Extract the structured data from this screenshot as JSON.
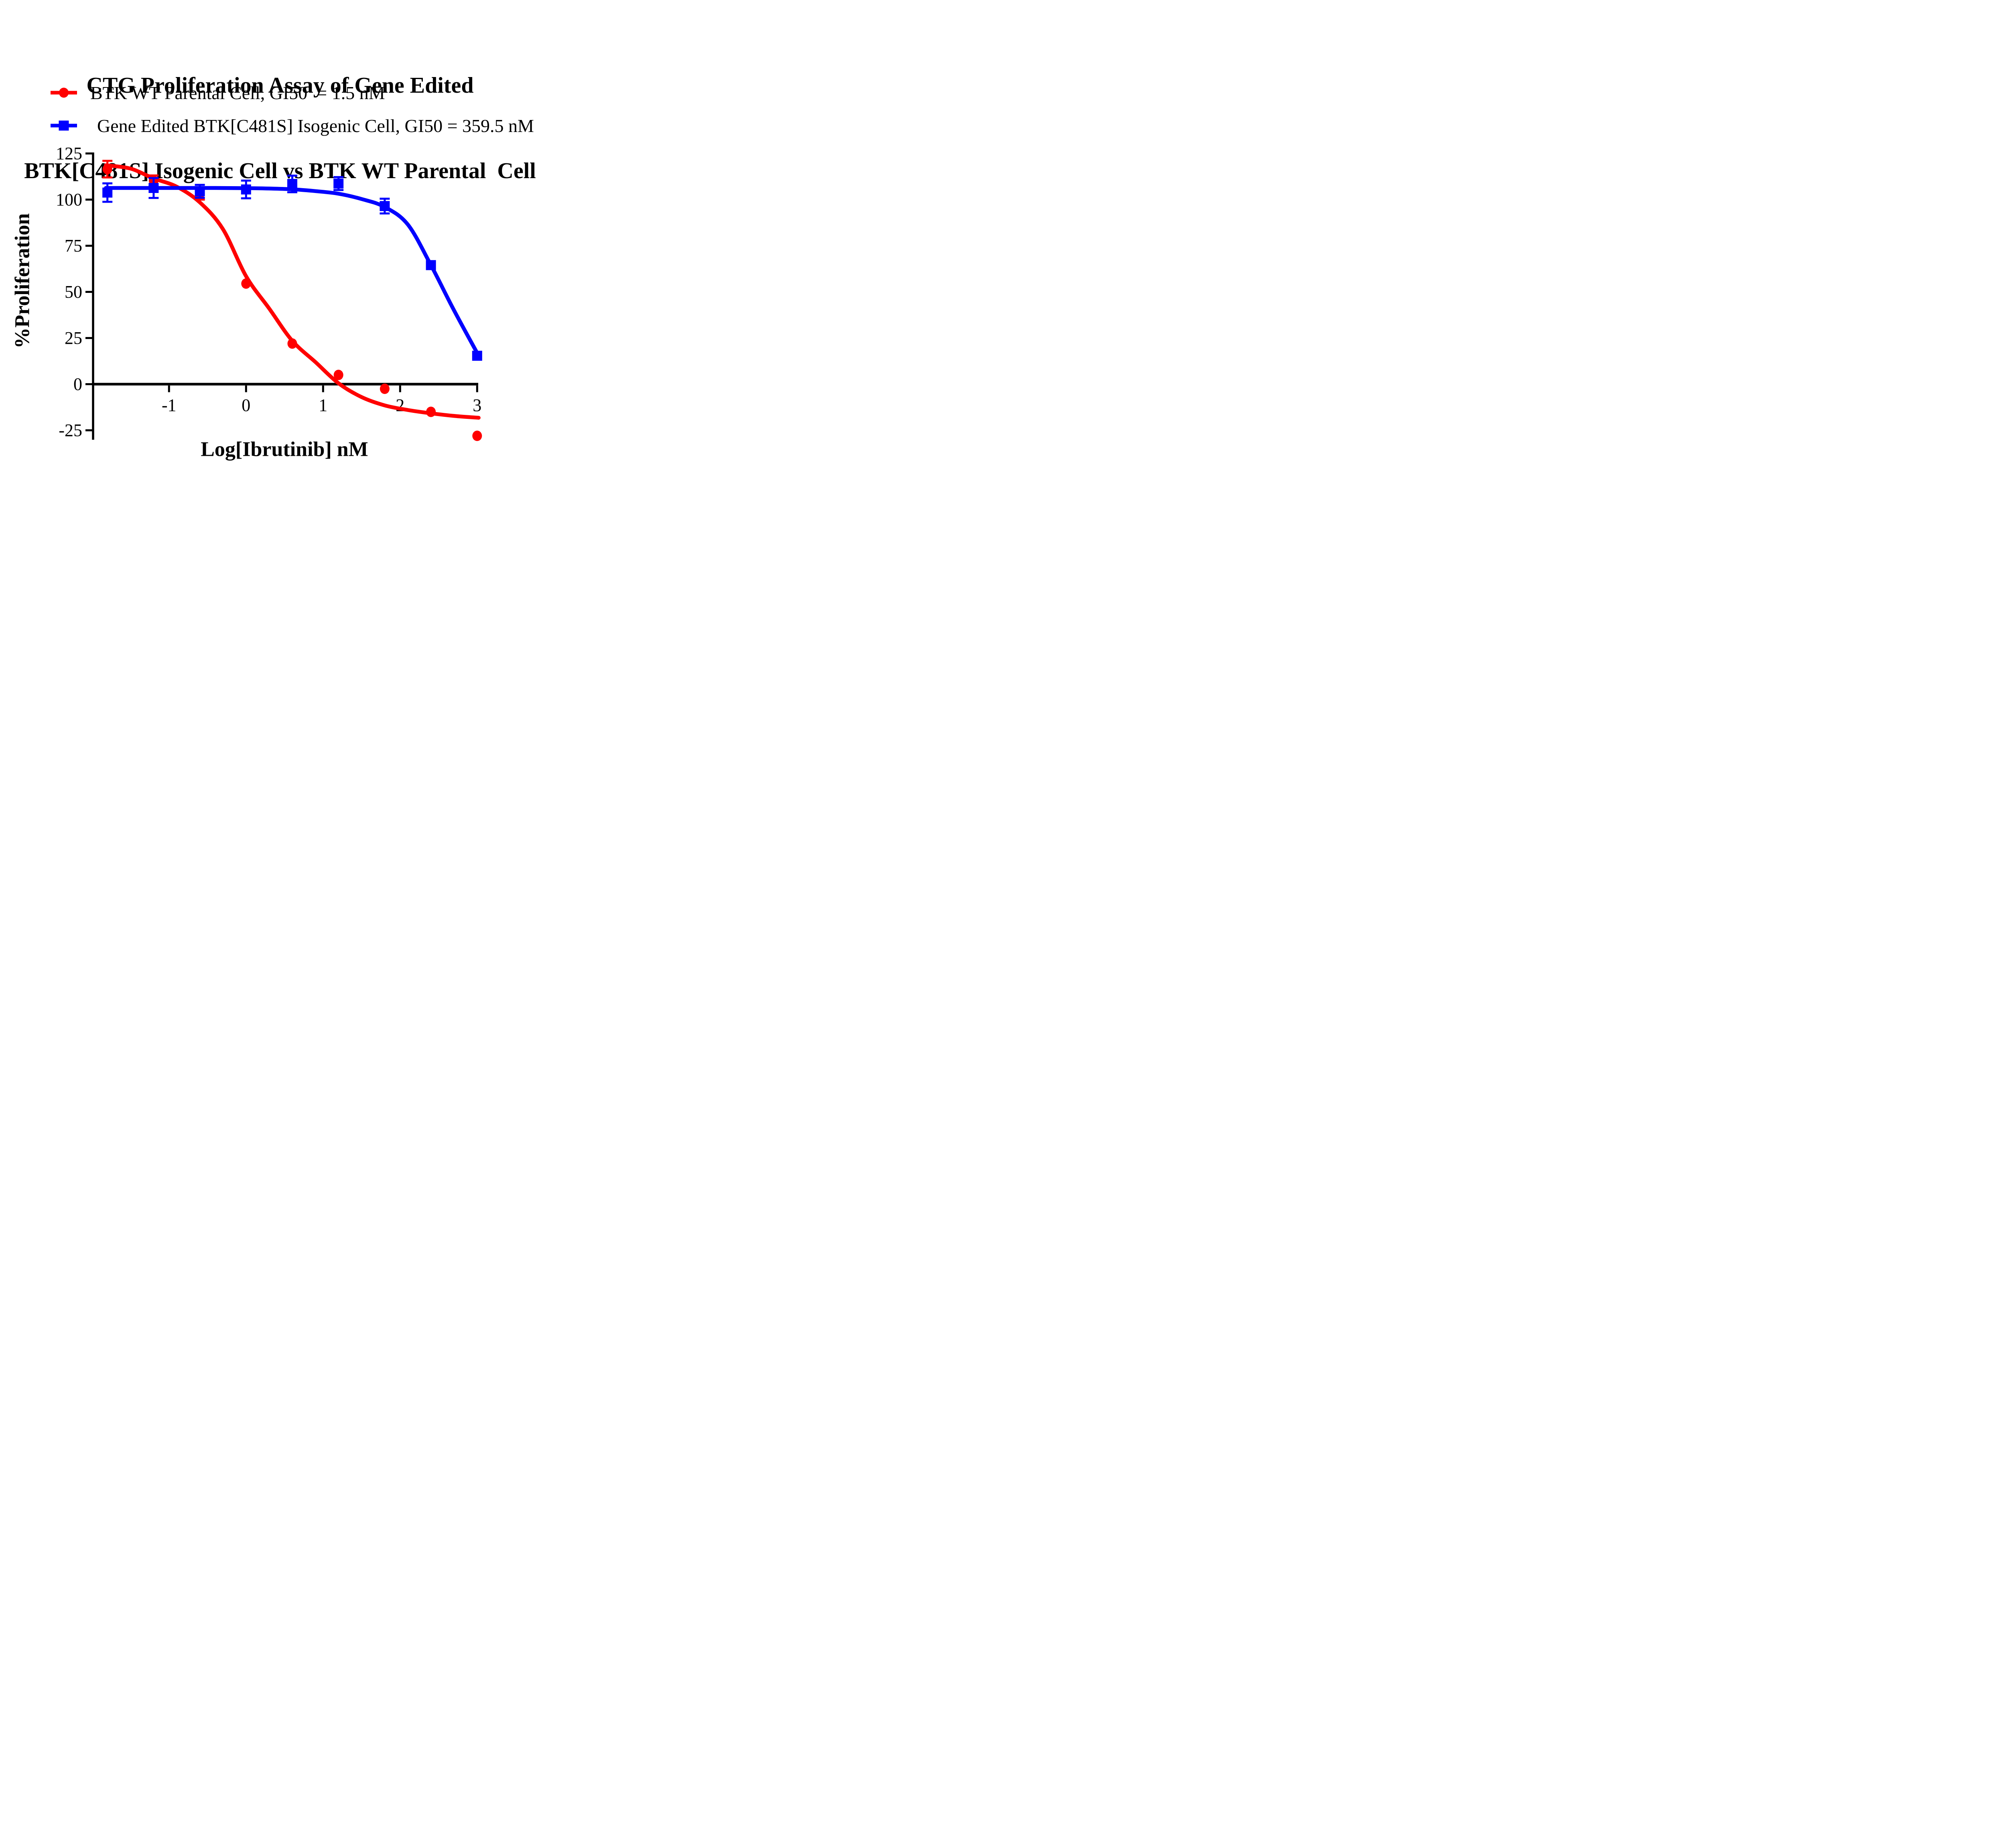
{
  "title": {
    "line1": "CTG Proliferation Assay of Gene Edited",
    "line2": "BTK[C481S] Isogenic Cell vs BTK WT Parental  Cell"
  },
  "legend": {
    "items": [
      {
        "label": "BTK WT Parental Cell, GI50  = 1.5 nM",
        "color": "#FF0000",
        "marker": "circle"
      },
      {
        "label": "Gene Edited BTK[C481S] Isogenic Cell, GI50 = 359.5 nM",
        "color": "#0000FF",
        "marker": "square"
      }
    ]
  },
  "chart_data": {
    "type": "scatter",
    "title": "CTG Proliferation Assay of Gene Edited BTK[C481S] Isogenic Cell vs BTK WT Parental  Cell",
    "xlabel": "Log[Ibrutinib] nM",
    "ylabel": "%Proliferation",
    "xlim": [
      -2,
      3.1
    ],
    "ylim": [
      -30,
      125
    ],
    "x_ticks": [
      -1,
      0,
      1,
      2,
      3
    ],
    "y_ticks": [
      125,
      100,
      75,
      50,
      25,
      0,
      -25
    ],
    "grid": false,
    "legend_position": "top-left-above-plot",
    "series": [
      {
        "name": "BTK WT Parental Cell",
        "gi50": "1.5 nM",
        "color": "#FF0000",
        "marker": "circle",
        "x": [
          -1.8,
          -1.2,
          -0.6,
          0,
          0.6,
          1.2,
          1.8,
          2.4,
          3.0
        ],
        "y": [
          116.5,
          110.3,
          103.3,
          54.5,
          22,
          5,
          -2.5,
          -15,
          -28
        ],
        "yerr": [
          4.5,
          2.8,
          3.3,
          0,
          0,
          0,
          0,
          0,
          0
        ],
        "fit_curve_x": [
          -1.82,
          -1.5,
          -1.2,
          -0.9,
          -0.6,
          -0.3,
          0,
          0.3,
          0.6,
          0.9,
          1.2,
          1.5,
          1.8,
          2.1,
          2.4,
          2.7,
          3.02
        ],
        "fit_curve_y": [
          118.6,
          116.8,
          111.5,
          107.0,
          98.5,
          84.0,
          58.5,
          41.0,
          23.5,
          12.0,
          0.5,
          -7.0,
          -11.5,
          -14.0,
          -15.8,
          -17.2,
          -18.2
        ]
      },
      {
        "name": "Gene Edited BTK[C481S] Isogenic Cell",
        "gi50": "359.5 nM",
        "color": "#0000FF",
        "marker": "square",
        "x": [
          -1.8,
          -1.2,
          -0.6,
          0,
          0.6,
          1.2,
          1.8,
          2.4,
          3.0
        ],
        "y": [
          103.8,
          106.3,
          104.5,
          105.5,
          108.5,
          108.7,
          96.5,
          64.5,
          15.4
        ],
        "yerr": [
          5.0,
          5.4,
          3.5,
          4.8,
          4.5,
          3.5,
          4.0,
          0,
          0
        ],
        "fit_curve_x": [
          -1.82,
          -1.4,
          -0.9,
          -0.4,
          0,
          0.3,
          0.6,
          0.9,
          1.2,
          1.5,
          1.8,
          2.1,
          2.4,
          2.7,
          3.02
        ],
        "fit_curve_y": [
          106.3,
          106.3,
          106.3,
          106.3,
          106.2,
          106.0,
          105.6,
          104.6,
          103.2,
          100.3,
          96.0,
          86.5,
          64.5,
          40.0,
          15.4
        ]
      }
    ]
  }
}
